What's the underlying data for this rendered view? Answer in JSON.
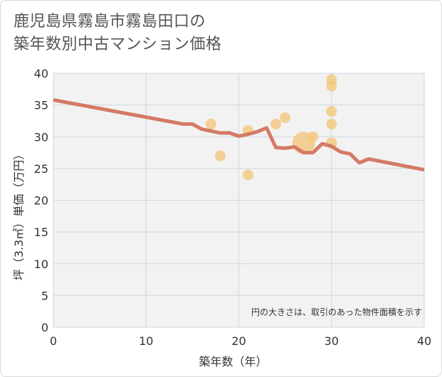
{
  "title": {
    "line1": "鹿児島県霧島市霧島田口の",
    "line2": "築年数別中古マンション価格"
  },
  "colors": {
    "line": "#d47a65",
    "bubble": "#f3c57a",
    "grid": "#ccd6e0",
    "plot_bg": "#f2f2f2"
  },
  "chart_data": {
    "type": "scatter",
    "title": "鹿児島県霧島市霧島田口の築年数別中古マンション価格",
    "xlabel": "築年数（年）",
    "ylabel": "坪（3.3㎡）単価（万円）",
    "xlim": [
      0,
      40
    ],
    "ylim": [
      0,
      40
    ],
    "xticks": [
      "0",
      "10",
      "20",
      "30",
      "40"
    ],
    "yticks": [
      "0",
      "5",
      "10",
      "15",
      "20",
      "25",
      "30",
      "35",
      "40"
    ],
    "note": "円の大きさは、取引のあった物件面積を示す",
    "bubbles": [
      {
        "x": 17,
        "y": 32,
        "size": 1
      },
      {
        "x": 18,
        "y": 27,
        "size": 1
      },
      {
        "x": 21,
        "y": 31,
        "size": 1
      },
      {
        "x": 21,
        "y": 24,
        "size": 1
      },
      {
        "x": 24,
        "y": 32,
        "size": 1
      },
      {
        "x": 25,
        "y": 33,
        "size": 1
      },
      {
        "x": 27,
        "y": 29,
        "size": 4.5
      },
      {
        "x": 28,
        "y": 30,
        "size": 1
      },
      {
        "x": 30,
        "y": 39,
        "size": 1
      },
      {
        "x": 30,
        "y": 38,
        "size": 1
      },
      {
        "x": 30,
        "y": 34,
        "size": 1
      },
      {
        "x": 30,
        "y": 32,
        "size": 1
      },
      {
        "x": 30,
        "y": 29,
        "size": 1.1
      }
    ],
    "trend_line": {
      "x": [
        0,
        14,
        15,
        16,
        17,
        18,
        19,
        20,
        21,
        22,
        23,
        24,
        25,
        26,
        27,
        28,
        29,
        30,
        31,
        32,
        33,
        34,
        40
      ],
      "y": [
        35.8,
        32,
        32,
        31.2,
        30.9,
        30.6,
        30.6,
        30.1,
        30.4,
        30.8,
        31.4,
        28.3,
        28.2,
        28.4,
        27.5,
        27.5,
        28.9,
        28.5,
        27.6,
        27.3,
        25.9,
        26.5,
        24.8
      ]
    }
  }
}
